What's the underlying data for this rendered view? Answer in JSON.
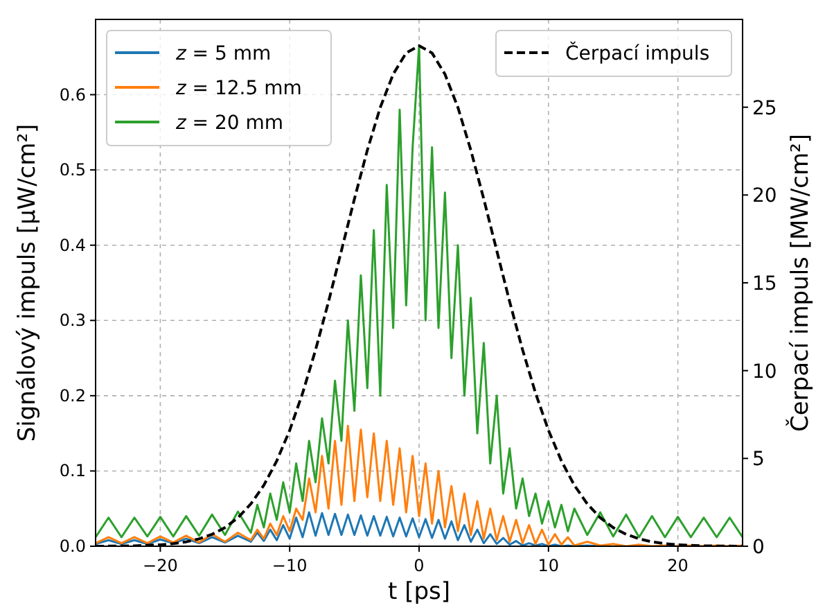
{
  "chart_data": {
    "type": "line",
    "xlabel": "t [ps]",
    "ylabel": "Signálový impuls [μW/cm²]",
    "y2label": "Čerpací impuls [MW/cm²]",
    "xlim": [
      -25,
      25
    ],
    "xticks": [
      -20,
      -10,
      0,
      10,
      20
    ],
    "ylim": [
      0,
      0.7
    ],
    "yticks": [
      {
        "value": 0,
        "label": "0.0"
      },
      {
        "value": 0.1,
        "label": "0.1"
      },
      {
        "value": 0.2,
        "label": "0.2"
      },
      {
        "value": 0.3,
        "label": "0.3"
      },
      {
        "value": 0.4,
        "label": "0.4"
      },
      {
        "value": 0.5,
        "label": "0.5"
      },
      {
        "value": 0.6,
        "label": "0.6"
      }
    ],
    "y2lim": [
      0,
      30
    ],
    "y2ticks": [
      0,
      5,
      10,
      15,
      20,
      25
    ],
    "grid": true,
    "legend": "top left",
    "x": [
      -25,
      -24,
      -23,
      -22,
      -21,
      -20,
      -19,
      -18,
      -17,
      -16,
      -15,
      -14,
      -13,
      -12.5,
      -12,
      -11.5,
      -11,
      -10.5,
      -10,
      -9.5,
      -9,
      -8.5,
      -8,
      -7.5,
      -7,
      -6.5,
      -6,
      -5.5,
      -5,
      -4.5,
      -4,
      -3.5,
      -3,
      -2.5,
      -2,
      -1.5,
      -1,
      -0.5,
      0,
      0.5,
      1,
      1.5,
      2,
      2.5,
      3,
      3.5,
      4,
      4.5,
      5,
      5.5,
      6,
      6.5,
      7,
      7.5,
      8,
      8.5,
      9,
      9.5,
      10,
      10.5,
      11,
      11.5,
      12,
      13,
      14,
      15,
      16,
      17,
      18,
      19,
      20,
      21,
      22,
      23,
      24,
      25
    ],
    "series": [
      {
        "name": "z = 5 mm",
        "color": "#1f77b4",
        "values": [
          0.003,
          0.008,
          0.003,
          0.008,
          0.003,
          0.009,
          0.004,
          0.01,
          0.004,
          0.012,
          0.005,
          0.014,
          0.006,
          0.018,
          0.007,
          0.022,
          0.008,
          0.028,
          0.01,
          0.038,
          0.012,
          0.045,
          0.014,
          0.044,
          0.015,
          0.043,
          0.015,
          0.042,
          0.015,
          0.041,
          0.014,
          0.04,
          0.014,
          0.039,
          0.013,
          0.038,
          0.013,
          0.037,
          0.012,
          0.036,
          0.011,
          0.035,
          0.01,
          0.033,
          0.008,
          0.028,
          0.006,
          0.022,
          0.004,
          0.016,
          0.003,
          0.011,
          0.002,
          0.007,
          0.001,
          0.004,
          0.001,
          0.003,
          0,
          0.002,
          0,
          0.001,
          0,
          0.001,
          0,
          null,
          null,
          null,
          null,
          null,
          null,
          null,
          null,
          null,
          null,
          null
        ]
      },
      {
        "name": "z = 12.5 mm",
        "color": "#ff7f0e",
        "values": [
          0.004,
          0.012,
          0.004,
          0.012,
          0.004,
          0.013,
          0.005,
          0.014,
          0.005,
          0.016,
          0.006,
          0.018,
          0.008,
          0.022,
          0.01,
          0.03,
          0.015,
          0.04,
          0.02,
          0.05,
          0.035,
          0.09,
          0.045,
          0.12,
          0.05,
          0.14,
          0.055,
          0.16,
          0.06,
          0.155,
          0.065,
          0.15,
          0.06,
          0.14,
          0.055,
          0.13,
          0.045,
          0.12,
          0.04,
          0.11,
          0.03,
          0.1,
          0.025,
          0.08,
          0.02,
          0.07,
          0.015,
          0.06,
          0.01,
          0.05,
          0.008,
          0.04,
          0.006,
          0.035,
          0.004,
          0.028,
          0.003,
          0.022,
          0.002,
          0.016,
          0.002,
          0.012,
          0.001,
          0.006,
          0.001,
          0.003,
          0,
          0.002,
          0,
          0.001,
          0,
          0.001,
          0,
          0.001,
          0,
          0.001
        ]
      },
      {
        "name": "z = 20 mm",
        "color": "#2ca02c",
        "values": [
          0.012,
          0.038,
          0.012,
          0.038,
          0.013,
          0.039,
          0.013,
          0.04,
          0.014,
          0.042,
          0.015,
          0.046,
          0.018,
          0.055,
          0.025,
          0.07,
          0.035,
          0.085,
          0.045,
          0.11,
          0.06,
          0.14,
          0.085,
          0.17,
          0.11,
          0.22,
          0.14,
          0.3,
          0.18,
          0.36,
          0.21,
          0.42,
          0.2,
          0.48,
          0.29,
          0.58,
          0.32,
          0.53,
          0.665,
          0.3,
          0.53,
          0.29,
          0.47,
          0.25,
          0.4,
          0.2,
          0.33,
          0.15,
          0.27,
          0.11,
          0.2,
          0.07,
          0.13,
          0.05,
          0.09,
          0.04,
          0.07,
          0.03,
          0.06,
          0.025,
          0.055,
          0.02,
          0.05,
          0.015,
          0.045,
          0.013,
          0.042,
          0.012,
          0.04,
          0.012,
          0.039,
          0.012,
          0.038,
          0.012,
          0.038,
          0.012
        ]
      },
      {
        "name": "Čerpací impuls",
        "color": "#000000",
        "axis": "y2",
        "line_style": "dashed",
        "x": [
          -25,
          -22,
          -20,
          -19,
          -18,
          -17,
          -16,
          -15,
          -14,
          -13,
          -12,
          -11,
          -10,
          -9,
          -8,
          -7,
          -6,
          -5,
          -4,
          -3,
          -2,
          -1,
          0,
          1,
          2,
          3,
          4,
          5,
          6,
          7,
          8,
          9,
          10,
          11,
          12,
          13,
          14,
          15,
          16,
          17,
          18,
          19,
          20,
          22,
          25
        ],
        "values": [
          0,
          0.02,
          0.08,
          0.15,
          0.25,
          0.42,
          0.68,
          1.06,
          1.62,
          2.41,
          3.47,
          4.86,
          6.6,
          8.72,
          11.18,
          13.92,
          16.84,
          19.77,
          22.55,
          24.99,
          26.88,
          28.09,
          28.5,
          28.09,
          26.88,
          24.99,
          22.55,
          19.77,
          16.84,
          13.92,
          11.18,
          8.72,
          6.6,
          4.86,
          3.47,
          2.41,
          1.62,
          1.06,
          0.68,
          0.42,
          0.25,
          0.15,
          0.08,
          0.02,
          0
        ]
      }
    ]
  }
}
